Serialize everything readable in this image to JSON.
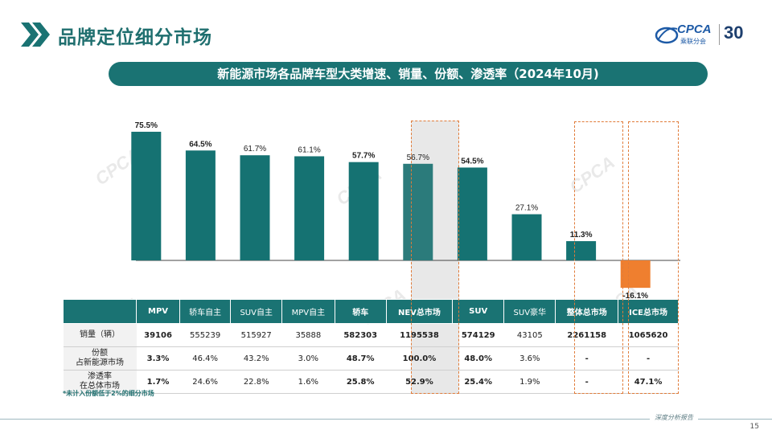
{
  "header": {
    "title": "品牌定位细分市场",
    "logo_text": "CPCA",
    "logo_subtext": "乘联分会",
    "anniversary_number": "30",
    "accent_color": "#1a7373"
  },
  "banner": {
    "text": "新能源市场各品牌车型大类增速、销量、份额、渗透率（2024年10月)"
  },
  "chart_data": {
    "type": "bar",
    "categories": [
      "MPV",
      "轿车自主",
      "SUV自主",
      "MPV自主",
      "轿车",
      "NEV总市场",
      "SUV",
      "SUV豪华",
      "整体总市场",
      "ICE总市场"
    ],
    "values": [
      75.5,
      64.5,
      61.7,
      61.1,
      57.7,
      56.7,
      54.5,
      27.1,
      11.3,
      -16.1
    ],
    "labels": [
      "75.5%",
      "64.5%",
      "61.7%",
      "61.1%",
      "57.7%",
      "56.7%",
      "54.5%",
      "27.1%",
      "11.3%",
      "-16.1%"
    ],
    "bold_labels": [
      true,
      true,
      false,
      false,
      true,
      false,
      true,
      false,
      true,
      true
    ],
    "colors": {
      "positive": "#157272",
      "negative": "#ef7f2f",
      "highlight": "#2b7b7b"
    },
    "highlight_index": 5,
    "ylim": [
      -20,
      80
    ],
    "title": "",
    "xlabel": "",
    "ylabel": ""
  },
  "table": {
    "headers": [
      "MPV",
      "轿车自主",
      "SUV自主",
      "MPV自主",
      "轿车",
      "NEV总市场",
      "SUV",
      "SUV豪华",
      "整体总市场",
      "ICE总市场"
    ],
    "header_bold": [
      true,
      false,
      false,
      false,
      true,
      true,
      true,
      false,
      true,
      true
    ],
    "rows": [
      {
        "label": "销量（辆）",
        "cells": [
          "39106",
          "555239",
          "515927",
          "35888",
          "582303",
          "1195538",
          "574129",
          "43105",
          "2261158",
          "1065620"
        ]
      },
      {
        "label": "份额\n占新能源市场",
        "cells": [
          "3.3%",
          "46.4%",
          "43.2%",
          "3.0%",
          "48.7%",
          "100.0%",
          "48.0%",
          "3.6%",
          "-",
          "-"
        ]
      },
      {
        "label": "渗透率\n在总体市场",
        "cells": [
          "1.7%",
          "24.6%",
          "22.8%",
          "1.6%",
          "25.8%",
          "52.9%",
          "25.4%",
          "1.9%",
          "-",
          "47.1%"
        ]
      }
    ],
    "cell_bold": [
      true,
      false,
      false,
      false,
      true,
      true,
      true,
      false,
      true,
      true
    ]
  },
  "footnote": "*未计入份额低于2%的细分市场",
  "footer": {
    "text": "深度分析报告",
    "page_number": "15"
  }
}
